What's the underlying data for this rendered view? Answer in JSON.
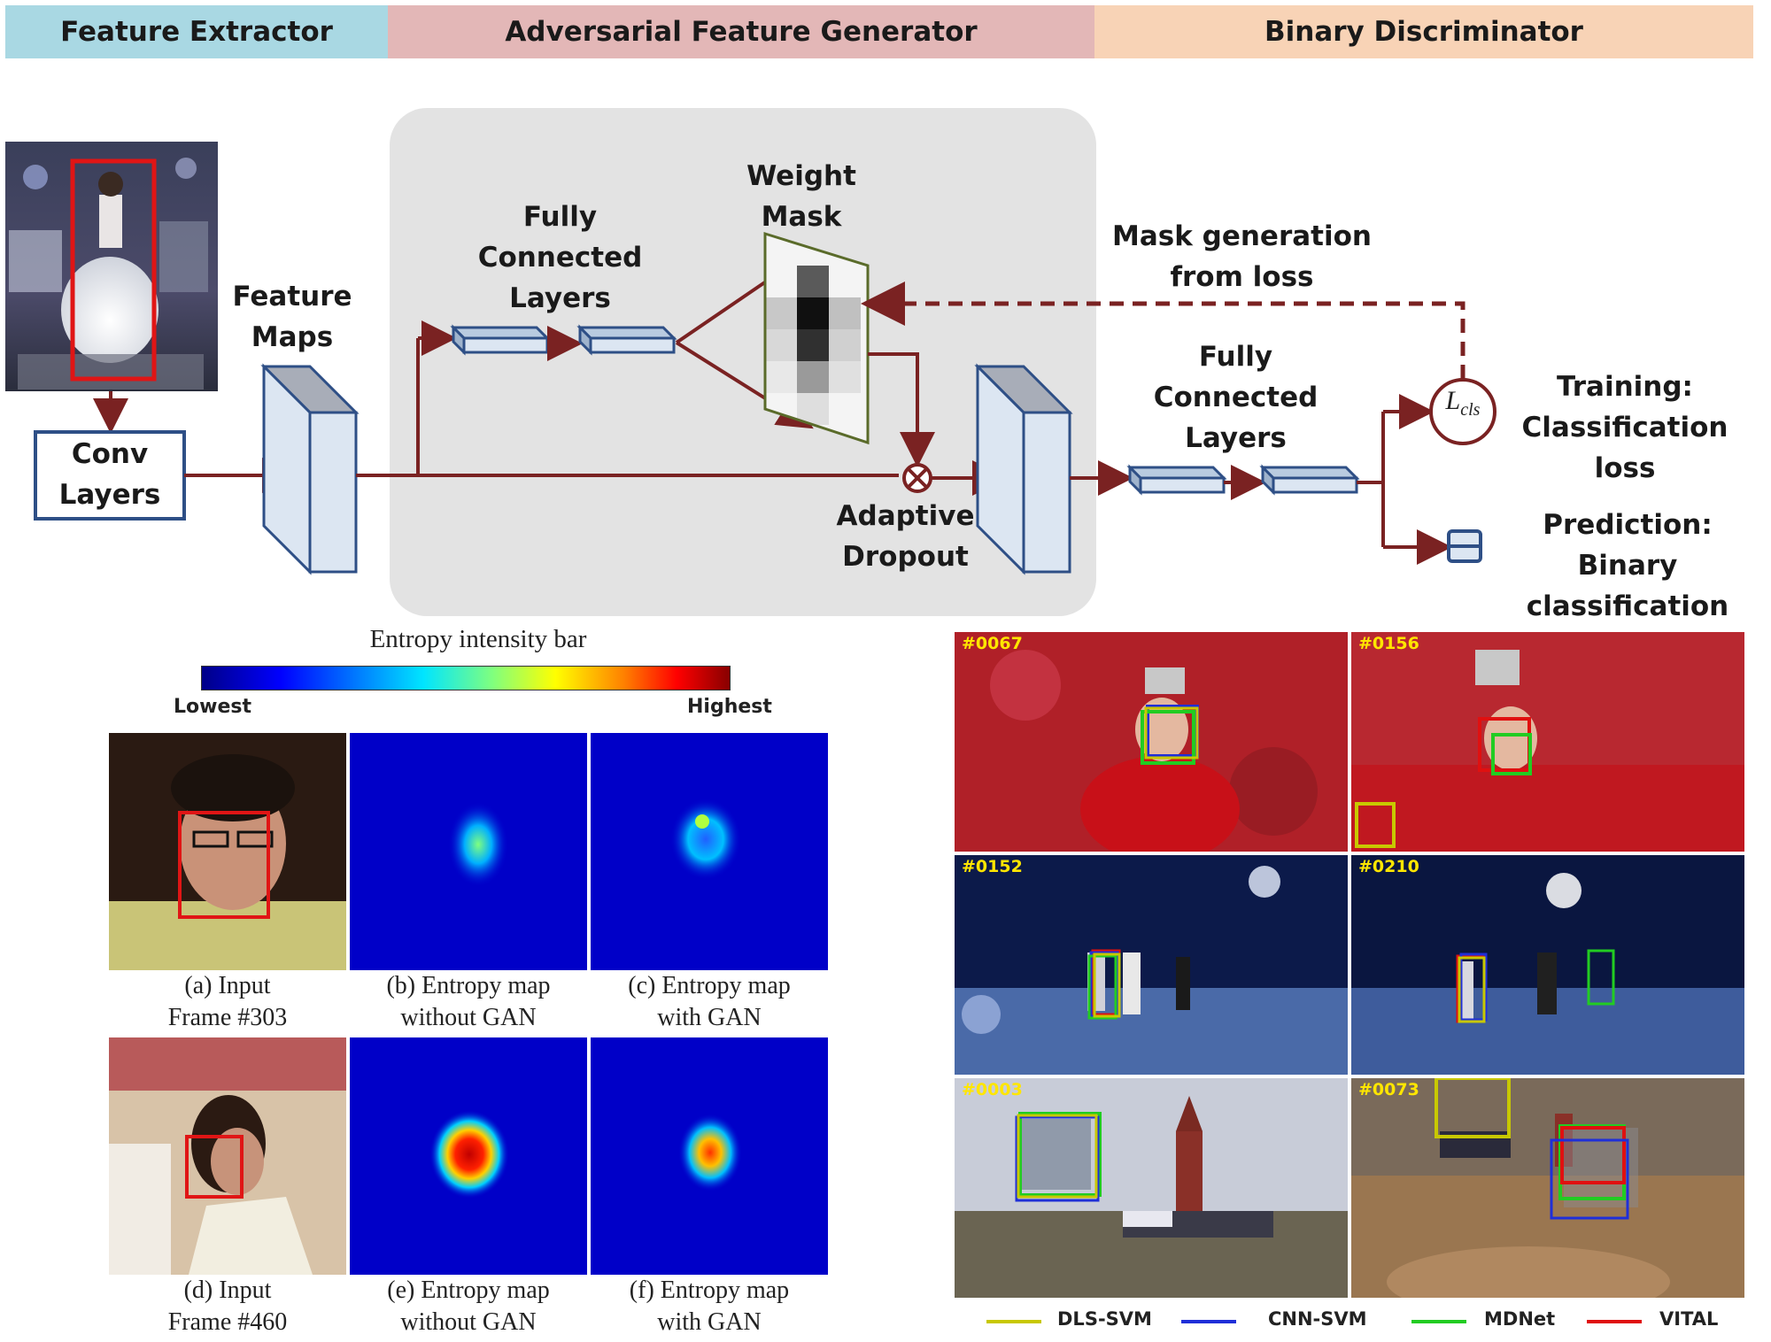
{
  "headers": {
    "feature_extractor": "Feature Extractor",
    "adversarial_generator": "Adversarial Feature Generator",
    "binary_discriminator": "Binary Discriminator"
  },
  "diagram": {
    "conv_layers": "Conv\nLayers",
    "feature_maps": "Feature\nMaps",
    "fc_layers_top": "Fully\nConnected\nLayers",
    "weight_mask": "Weight\nMask",
    "mask_generation": "Mask generation\nfrom loss",
    "adaptive_dropout": "Adaptive\nDropout",
    "fc_layers_right": "Fully\nConnected\nLayers",
    "loss_symbol": "L",
    "loss_subscript": "cls",
    "training": "Training:\nClassification loss",
    "prediction": "Prediction:\nBinary classification"
  },
  "entropy_bar": {
    "title": "Entropy intensity bar",
    "lowest": "Lowest",
    "highest": "Highest"
  },
  "entropy_captions": [
    "(a) Input\nFrame #303",
    "(b) Entropy map\nwithout GAN",
    "(c) Entropy map\nwith GAN",
    "(d) Input\nFrame #460",
    "(e) Entropy map\nwithout GAN",
    "(f) Entropy map\nwith GAN"
  ],
  "tracking_frames": [
    "#0067",
    "#0156",
    "#0152",
    "#0210",
    "#0003",
    "#0073"
  ],
  "legend": [
    {
      "name": "DLS-SVM",
      "color": "#c8c800"
    },
    {
      "name": "CNN-SVM",
      "color": "#1f2fd8"
    },
    {
      "name": "MDNet",
      "color": "#22cc22"
    },
    {
      "name": "VITAL",
      "color": "#e01010"
    }
  ],
  "colors": {
    "arrow": "#7a2222",
    "box_stroke": "#2e4f86",
    "box_fill": "#dce6f2",
    "feature_extractor_bg": "#a9d8e3",
    "generator_bg": "#e3b7b7",
    "discriminator_bg": "#f8d3b6",
    "generator_panel": "#e3e3e3",
    "mask_border": "#5a6b2a"
  }
}
